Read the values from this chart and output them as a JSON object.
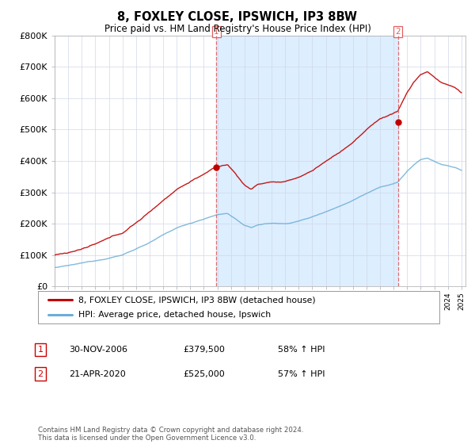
{
  "title": "8, FOXLEY CLOSE, IPSWICH, IP3 8BW",
  "subtitle": "Price paid vs. HM Land Registry's House Price Index (HPI)",
  "ylim": [
    0,
    800000
  ],
  "yticks": [
    0,
    100000,
    200000,
    300000,
    400000,
    500000,
    600000,
    700000,
    800000
  ],
  "ytick_labels": [
    "£0",
    "£100K",
    "£200K",
    "£300K",
    "£400K",
    "£500K",
    "£600K",
    "£700K",
    "£800K"
  ],
  "sale1_date": 2006.92,
  "sale1_price": 379500,
  "sale2_date": 2020.31,
  "sale2_price": 525000,
  "hpi_color": "#6baed6",
  "price_color": "#c00000",
  "vline_color": "#e06060",
  "shade_color": "#ddeeff",
  "legend_label1": "8, FOXLEY CLOSE, IPSWICH, IP3 8BW (detached house)",
  "legend_label2": "HPI: Average price, detached house, Ipswich",
  "table_row1": [
    "1",
    "30-NOV-2006",
    "£379,500",
    "58% ↑ HPI"
  ],
  "table_row2": [
    "2",
    "21-APR-2020",
    "£525,000",
    "57% ↑ HPI"
  ],
  "footer": "Contains HM Land Registry data © Crown copyright and database right 2024.\nThis data is licensed under the Open Government Licence v3.0.",
  "background_color": "#ffffff",
  "grid_color": "#d0d8e8"
}
